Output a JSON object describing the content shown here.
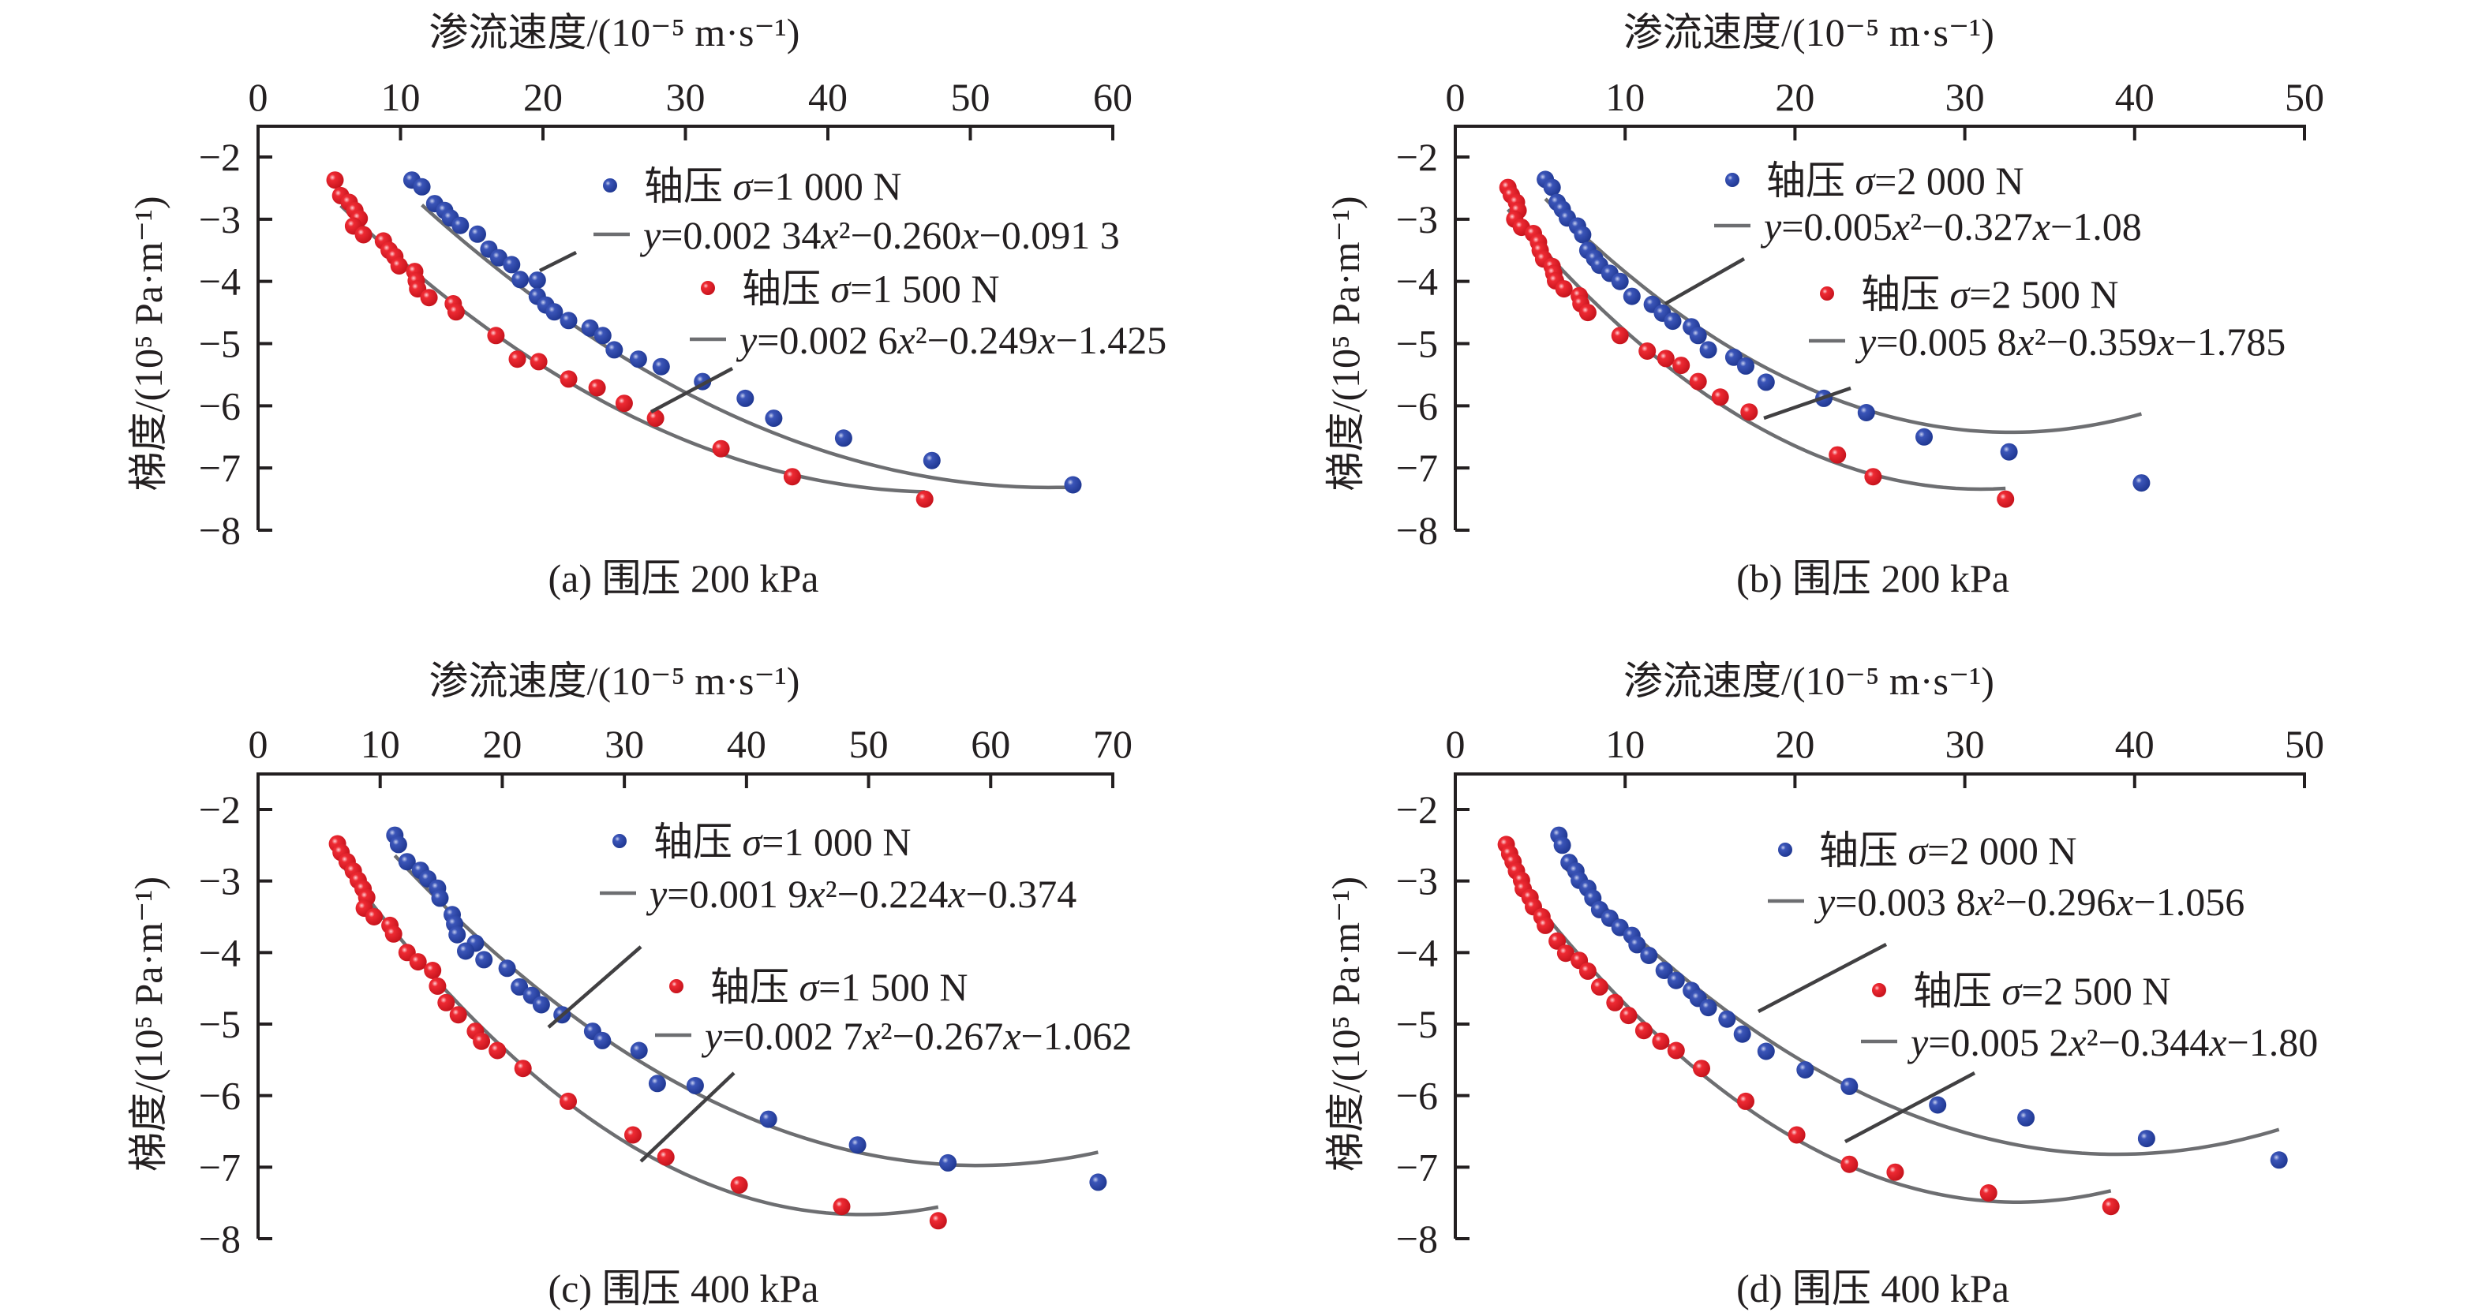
{
  "colors": {
    "series_blue": "#2b46a8",
    "series_red": "#e6232b",
    "fit_curve": "#6d6e71",
    "axis": "#231f20"
  },
  "chart_data": [
    {
      "id": "a",
      "type": "scatter",
      "title": "渗流速度/(10⁻⁵ m·s⁻¹)",
      "caption": "(a) 围压 200 kPa",
      "xlabel": "渗流速度/(10⁻⁵ m·s⁻¹)",
      "ylabel": "梯度/(10⁵ Pa·m⁻¹)",
      "xlim": [
        0,
        60
      ],
      "ylim": [
        -8,
        -2
      ],
      "x_axis_position": "top",
      "xticks": [
        0,
        10,
        20,
        30,
        40,
        50,
        60
      ],
      "xtick_labels": [
        "0",
        "10",
        "20",
        "30",
        "40",
        "50",
        "60"
      ],
      "yticks": [
        -2,
        -3,
        -4,
        -5,
        -6,
        -7,
        -8
      ],
      "ytick_labels": [
        "−2",
        "−3",
        "−4",
        "−5",
        "−6",
        "−7",
        "−8"
      ],
      "grid": false,
      "legend_position": "upper-right",
      "series": [
        {
          "name": "轴压 σ=1 000 N",
          "legend_prefix": "轴压 ",
          "legend_sigma": "σ",
          "legend_value": "=1 000 N",
          "color": "blue",
          "fit": {
            "a": 0.00234,
            "b": -0.26,
            "c": -0.0913,
            "x_range": [
              11.5,
              57.2
            ]
          },
          "fit_label_parts": [
            "y",
            "=0.002 34",
            "x",
            "²−0.260",
            "x",
            "−0.091 3"
          ],
          "x": [
            10.8,
            11.5,
            12.4,
            13.1,
            13.5,
            14.2,
            15.4,
            16.2,
            16.9,
            17.8,
            18.4,
            19.6,
            19.6,
            20.2,
            20.8,
            21.8,
            23.3,
            24.2,
            25.0,
            26.7,
            28.3,
            31.2,
            34.2,
            36.2,
            41.1,
            47.3,
            57.2
          ],
          "y": [
            -2.37,
            -2.48,
            -2.75,
            -2.86,
            -2.98,
            -3.1,
            -3.24,
            -3.48,
            -3.62,
            -3.73,
            -3.97,
            -3.98,
            -4.24,
            -4.38,
            -4.49,
            -4.63,
            -4.75,
            -4.87,
            -5.1,
            -5.25,
            -5.37,
            -5.61,
            -5.88,
            -6.2,
            -6.52,
            -6.88,
            -7.27
          ]
        },
        {
          "name": "轴压 σ=1 500 N",
          "legend_prefix": "轴压 ",
          "legend_sigma": "σ",
          "legend_value": "=1 500 N",
          "color": "red",
          "fit": {
            "a": 0.0026,
            "b": -0.249,
            "c": -1.425,
            "x_range": [
              5.8,
              46.8
            ]
          },
          "fit_label_parts": [
            "y",
            "=0.002 6",
            "x",
            "²−0.249",
            "x",
            "−1.425"
          ],
          "x": [
            5.4,
            5.8,
            6.4,
            6.8,
            7.1,
            6.7,
            7.4,
            8.8,
            9.2,
            9.6,
            9.9,
            11.0,
            11.1,
            11.2,
            12.0,
            13.7,
            13.9,
            16.7,
            18.2,
            19.7,
            21.8,
            23.8,
            25.7,
            27.9,
            32.5,
            37.5,
            46.8
          ],
          "y": [
            -2.37,
            -2.62,
            -2.73,
            -2.86,
            -2.99,
            -3.11,
            -3.25,
            -3.35,
            -3.5,
            -3.6,
            -3.75,
            -3.84,
            -3.99,
            -4.12,
            -4.26,
            -4.36,
            -4.49,
            -4.87,
            -5.25,
            -5.29,
            -5.57,
            -5.71,
            -5.96,
            -6.2,
            -6.69,
            -7.14,
            -7.5
          ]
        }
      ]
    },
    {
      "id": "b",
      "type": "scatter",
      "title": "渗流速度/(10⁻⁵ m·s⁻¹)",
      "caption": "(b) 围压 200 kPa",
      "xlabel": "渗流速度/(10⁻⁵ m·s⁻¹)",
      "ylabel": "梯度/(10⁵ Pa·m⁻¹)",
      "xlim": [
        0,
        50
      ],
      "ylim": [
        -8,
        -2
      ],
      "x_axis_position": "top",
      "xticks": [
        0,
        10,
        20,
        30,
        40,
        50
      ],
      "xtick_labels": [
        "0",
        "10",
        "20",
        "30",
        "40",
        "50"
      ],
      "yticks": [
        -2,
        -3,
        -4,
        -5,
        -6,
        -7,
        -8
      ],
      "ytick_labels": [
        "−2",
        "−3",
        "−4",
        "−5",
        "−6",
        "−7",
        "−8"
      ],
      "grid": false,
      "legend_position": "upper-right",
      "series": [
        {
          "name": "轴压 σ=2 000 N",
          "legend_prefix": "轴压 ",
          "legend_sigma": "σ",
          "legend_value": "=2 000 N",
          "color": "blue",
          "fit": {
            "a": 0.005,
            "b": -0.327,
            "c": -1.08,
            "x_range": [
              5.3,
              40.4
            ]
          },
          "fit_label_parts": [
            "y",
            "=0.005",
            "x",
            "²−0.327",
            "x",
            "−1.08"
          ],
          "x": [
            5.3,
            5.7,
            6.0,
            6.3,
            6.6,
            7.2,
            7.5,
            7.8,
            8.2,
            8.5,
            9.1,
            9.7,
            10.4,
            11.6,
            12.2,
            12.8,
            13.9,
            14.3,
            14.9,
            16.4,
            17.1,
            18.3,
            21.7,
            24.2,
            27.6,
            32.6,
            40.4
          ],
          "y": [
            -2.36,
            -2.49,
            -2.73,
            -2.84,
            -2.98,
            -3.11,
            -3.25,
            -3.5,
            -3.63,
            -3.74,
            -3.87,
            -4.0,
            -4.24,
            -4.37,
            -4.51,
            -4.64,
            -4.73,
            -4.87,
            -5.1,
            -5.22,
            -5.36,
            -5.62,
            -5.88,
            -6.11,
            -6.5,
            -6.74,
            -7.24
          ]
        },
        {
          "name": "轴压 σ=2 500 N",
          "legend_prefix": "轴压 ",
          "legend_sigma": "σ",
          "legend_value": "=2 500 N",
          "color": "red",
          "fit": {
            "a": 0.0058,
            "b": -0.359,
            "c": -1.785,
            "x_range": [
              3.1,
              32.4
            ]
          },
          "fit_label_parts": [
            "y",
            "=0.005 8",
            "x",
            "²−0.359",
            "x",
            "−1.785"
          ],
          "x": [
            3.1,
            3.3,
            3.6,
            3.7,
            3.5,
            3.9,
            4.6,
            4.9,
            5.0,
            5.2,
            5.7,
            5.8,
            5.9,
            6.4,
            7.3,
            7.4,
            7.8,
            9.7,
            11.3,
            12.4,
            13.3,
            14.3,
            15.6,
            17.3,
            22.5,
            24.6,
            32.4
          ],
          "y": [
            -2.49,
            -2.61,
            -2.73,
            -2.86,
            -3.0,
            -3.13,
            -3.23,
            -3.37,
            -3.5,
            -3.64,
            -3.76,
            -3.87,
            -3.99,
            -4.12,
            -4.23,
            -4.36,
            -4.5,
            -4.87,
            -5.12,
            -5.24,
            -5.35,
            -5.61,
            -5.86,
            -6.1,
            -6.79,
            -7.14,
            -7.5
          ]
        }
      ]
    },
    {
      "id": "c",
      "type": "scatter",
      "title": "渗流速度/(10⁻⁵ m·s⁻¹)",
      "caption": "(c) 围压 400 kPa",
      "xlabel": "渗流速度/(10⁻⁵ m·s⁻¹)",
      "ylabel": "梯度/(10⁵ Pa·m⁻¹)",
      "xlim": [
        0,
        70
      ],
      "ylim": [
        -8,
        -2
      ],
      "x_axis_position": "top",
      "xticks": [
        0,
        10,
        20,
        30,
        40,
        50,
        60,
        70
      ],
      "xtick_labels": [
        "0",
        "10",
        "20",
        "30",
        "40",
        "50",
        "60",
        "70"
      ],
      "yticks": [
        -2,
        -3,
        -4,
        -5,
        -6,
        -7,
        -8
      ],
      "ytick_labels": [
        "−2",
        "−3",
        "−4",
        "−5",
        "−6",
        "−7",
        "−8"
      ],
      "grid": false,
      "legend_position": "upper-right",
      "series": [
        {
          "name": "轴压 σ=1 000 N",
          "legend_prefix": "轴压 ",
          "legend_sigma": "σ",
          "legend_value": "=1 000 N",
          "color": "blue",
          "fit": {
            "a": 0.0019,
            "b": -0.224,
            "c": -0.374,
            "x_range": [
              11.2,
              68.8
            ]
          },
          "fit_label_parts": [
            "y",
            "=0.001 9",
            "x",
            "²−0.224",
            "x",
            "−0.374"
          ],
          "x": [
            11.2,
            11.5,
            12.2,
            13.3,
            13.9,
            14.7,
            14.9,
            15.9,
            16.1,
            16.3,
            17.8,
            17.0,
            18.5,
            20.4,
            21.4,
            22.4,
            23.2,
            24.9,
            27.4,
            28.2,
            31.2,
            32.7,
            35.8,
            41.8,
            49.1,
            56.5,
            68.8
          ],
          "y": [
            -2.36,
            -2.49,
            -2.73,
            -2.85,
            -2.97,
            -3.1,
            -3.24,
            -3.47,
            -3.6,
            -3.75,
            -3.87,
            -3.98,
            -4.1,
            -4.22,
            -4.48,
            -4.6,
            -4.73,
            -4.87,
            -5.1,
            -5.23,
            -5.37,
            -5.83,
            -5.86,
            -6.33,
            -6.69,
            -6.94,
            -7.21
          ]
        },
        {
          "name": "轴压 σ=1 500 N",
          "legend_prefix": "轴压 ",
          "legend_sigma": "σ",
          "legend_value": "=1 500 N",
          "color": "red",
          "fit": {
            "a": 0.0027,
            "b": -0.267,
            "c": -1.062,
            "x_range": [
              6.8,
              55.7
            ]
          },
          "fit_label_parts": [
            "y",
            "=0.002 7",
            "x",
            "²−0.267",
            "x",
            "−1.062"
          ],
          "x": [
            6.5,
            6.8,
            7.3,
            7.8,
            8.2,
            8.6,
            8.9,
            8.7,
            9.5,
            10.8,
            11.1,
            12.2,
            13.1,
            14.3,
            14.7,
            15.4,
            16.4,
            17.8,
            18.3,
            19.6,
            21.7,
            25.4,
            30.7,
            33.4,
            39.4,
            47.8,
            55.7
          ],
          "y": [
            -2.48,
            -2.6,
            -2.73,
            -2.86,
            -2.99,
            -3.11,
            -3.23,
            -3.38,
            -3.5,
            -3.62,
            -3.74,
            -4.0,
            -4.13,
            -4.25,
            -4.47,
            -4.7,
            -4.87,
            -5.1,
            -5.24,
            -5.37,
            -5.62,
            -6.08,
            -6.55,
            -6.86,
            -7.25,
            -7.55,
            -7.75
          ]
        }
      ]
    },
    {
      "id": "d",
      "type": "scatter",
      "title": "渗流速度/(10⁻⁵ m·s⁻¹)",
      "caption": "(d) 围压 400 kPa",
      "xlabel": "渗流速度/(10⁻⁵ m·s⁻¹)",
      "ylabel": "梯度/(10⁵ Pa·m⁻¹)",
      "xlim": [
        0,
        50
      ],
      "ylim": [
        -8,
        -2
      ],
      "x_axis_position": "top",
      "xticks": [
        0,
        10,
        20,
        30,
        40,
        50
      ],
      "xtick_labels": [
        "0",
        "10",
        "20",
        "30",
        "40",
        "50"
      ],
      "yticks": [
        -2,
        -3,
        -4,
        -5,
        -6,
        -7,
        -8
      ],
      "ytick_labels": [
        "−2",
        "−3",
        "−4",
        "−5",
        "−6",
        "−7",
        "−8"
      ],
      "grid": false,
      "legend_position": "upper-right",
      "series": [
        {
          "name": "轴压 σ=2 000 N",
          "legend_prefix": "轴压 ",
          "legend_sigma": "σ",
          "legend_value": "=2 000 N",
          "color": "blue",
          "fit": {
            "a": 0.0038,
            "b": -0.296,
            "c": -1.056,
            "x_range": [
              6.3,
              48.5
            ]
          },
          "fit_label_parts": [
            "y",
            "=0.003 8",
            "x",
            "²−0.296",
            "x",
            "−1.056"
          ],
          "x": [
            6.1,
            6.3,
            6.7,
            7.1,
            7.3,
            7.8,
            8.1,
            8.5,
            9.1,
            9.7,
            10.4,
            10.7,
            11.4,
            12.3,
            13.0,
            13.9,
            14.3,
            14.9,
            16.0,
            16.9,
            18.3,
            20.6,
            23.2,
            28.4,
            33.6,
            40.7,
            48.5
          ],
          "y": [
            -2.36,
            -2.5,
            -2.74,
            -2.86,
            -2.99,
            -3.1,
            -3.24,
            -3.4,
            -3.52,
            -3.65,
            -3.76,
            -3.89,
            -4.04,
            -4.25,
            -4.39,
            -4.53,
            -4.64,
            -4.77,
            -4.93,
            -5.14,
            -5.38,
            -5.64,
            -5.87,
            -6.13,
            -6.31,
            -6.6,
            -6.9
          ]
        },
        {
          "name": "轴压 σ=2 500 N",
          "legend_prefix": "轴压 ",
          "legend_sigma": "σ",
          "legend_value": "=2 500 N",
          "color": "red",
          "fit": {
            "a": 0.0052,
            "b": -0.344,
            "c": -1.8,
            "x_range": [
              3.2,
              38.6
            ]
          },
          "fit_label_parts": [
            "y",
            "=0.005 2",
            "x",
            "²−0.344",
            "x",
            "−1.80"
          ],
          "x": [
            3.0,
            3.2,
            3.4,
            3.6,
            3.9,
            4.0,
            4.4,
            4.6,
            5.1,
            5.3,
            6.0,
            6.5,
            7.3,
            7.8,
            8.5,
            9.4,
            10.2,
            11.1,
            12.1,
            13.0,
            14.5,
            17.1,
            20.1,
            23.2,
            25.9,
            31.4,
            38.6
          ],
          "y": [
            -2.49,
            -2.62,
            -2.73,
            -2.86,
            -2.99,
            -3.11,
            -3.23,
            -3.36,
            -3.5,
            -3.62,
            -3.84,
            -4.01,
            -4.11,
            -4.26,
            -4.48,
            -4.7,
            -4.88,
            -5.09,
            -5.24,
            -5.37,
            -5.62,
            -6.08,
            -6.55,
            -6.96,
            -7.07,
            -7.36,
            -7.55
          ]
        }
      ]
    }
  ]
}
